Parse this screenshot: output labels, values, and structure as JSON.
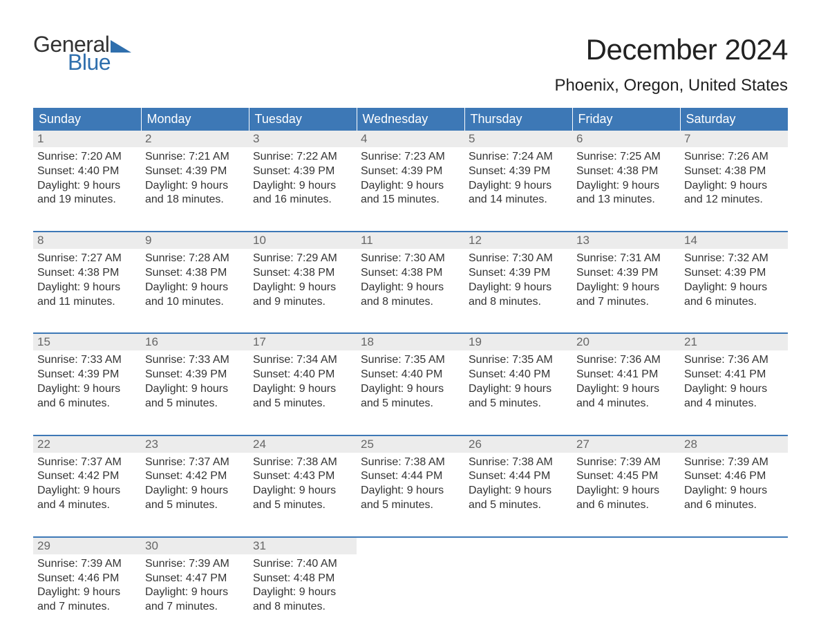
{
  "brand": {
    "text_a": "General",
    "text_b": "Blue",
    "color_a": "#333333",
    "color_b": "#2f6fad",
    "triangle_color": "#2f6fad"
  },
  "header": {
    "month_title": "December 2024",
    "location": "Phoenix, Oregon, United States"
  },
  "style": {
    "header_bg": "#3d78b6",
    "header_text": "#ffffff",
    "daynum_bg": "#ececec",
    "daynum_text": "#666666",
    "body_text": "#333333",
    "week_border": "#3d78b6",
    "title_fontsize": 42,
    "location_fontsize": 24,
    "dayheader_fontsize": 18,
    "daynum_fontsize": 17,
    "cell_fontsize": 16
  },
  "day_headers": [
    "Sunday",
    "Monday",
    "Tuesday",
    "Wednesday",
    "Thursday",
    "Friday",
    "Saturday"
  ],
  "weeks": [
    [
      {
        "n": "1",
        "lines": [
          "Sunrise: 7:20 AM",
          "Sunset: 4:40 PM",
          "Daylight: 9 hours",
          "and 19 minutes."
        ]
      },
      {
        "n": "2",
        "lines": [
          "Sunrise: 7:21 AM",
          "Sunset: 4:39 PM",
          "Daylight: 9 hours",
          "and 18 minutes."
        ]
      },
      {
        "n": "3",
        "lines": [
          "Sunrise: 7:22 AM",
          "Sunset: 4:39 PM",
          "Daylight: 9 hours",
          "and 16 minutes."
        ]
      },
      {
        "n": "4",
        "lines": [
          "Sunrise: 7:23 AM",
          "Sunset: 4:39 PM",
          "Daylight: 9 hours",
          "and 15 minutes."
        ]
      },
      {
        "n": "5",
        "lines": [
          "Sunrise: 7:24 AM",
          "Sunset: 4:39 PM",
          "Daylight: 9 hours",
          "and 14 minutes."
        ]
      },
      {
        "n": "6",
        "lines": [
          "Sunrise: 7:25 AM",
          "Sunset: 4:38 PM",
          "Daylight: 9 hours",
          "and 13 minutes."
        ]
      },
      {
        "n": "7",
        "lines": [
          "Sunrise: 7:26 AM",
          "Sunset: 4:38 PM",
          "Daylight: 9 hours",
          "and 12 minutes."
        ]
      }
    ],
    [
      {
        "n": "8",
        "lines": [
          "Sunrise: 7:27 AM",
          "Sunset: 4:38 PM",
          "Daylight: 9 hours",
          "and 11 minutes."
        ]
      },
      {
        "n": "9",
        "lines": [
          "Sunrise: 7:28 AM",
          "Sunset: 4:38 PM",
          "Daylight: 9 hours",
          "and 10 minutes."
        ]
      },
      {
        "n": "10",
        "lines": [
          "Sunrise: 7:29 AM",
          "Sunset: 4:38 PM",
          "Daylight: 9 hours",
          "and 9 minutes."
        ]
      },
      {
        "n": "11",
        "lines": [
          "Sunrise: 7:30 AM",
          "Sunset: 4:38 PM",
          "Daylight: 9 hours",
          "and 8 minutes."
        ]
      },
      {
        "n": "12",
        "lines": [
          "Sunrise: 7:30 AM",
          "Sunset: 4:39 PM",
          "Daylight: 9 hours",
          "and 8 minutes."
        ]
      },
      {
        "n": "13",
        "lines": [
          "Sunrise: 7:31 AM",
          "Sunset: 4:39 PM",
          "Daylight: 9 hours",
          "and 7 minutes."
        ]
      },
      {
        "n": "14",
        "lines": [
          "Sunrise: 7:32 AM",
          "Sunset: 4:39 PM",
          "Daylight: 9 hours",
          "and 6 minutes."
        ]
      }
    ],
    [
      {
        "n": "15",
        "lines": [
          "Sunrise: 7:33 AM",
          "Sunset: 4:39 PM",
          "Daylight: 9 hours",
          "and 6 minutes."
        ]
      },
      {
        "n": "16",
        "lines": [
          "Sunrise: 7:33 AM",
          "Sunset: 4:39 PM",
          "Daylight: 9 hours",
          "and 5 minutes."
        ]
      },
      {
        "n": "17",
        "lines": [
          "Sunrise: 7:34 AM",
          "Sunset: 4:40 PM",
          "Daylight: 9 hours",
          "and 5 minutes."
        ]
      },
      {
        "n": "18",
        "lines": [
          "Sunrise: 7:35 AM",
          "Sunset: 4:40 PM",
          "Daylight: 9 hours",
          "and 5 minutes."
        ]
      },
      {
        "n": "19",
        "lines": [
          "Sunrise: 7:35 AM",
          "Sunset: 4:40 PM",
          "Daylight: 9 hours",
          "and 5 minutes."
        ]
      },
      {
        "n": "20",
        "lines": [
          "Sunrise: 7:36 AM",
          "Sunset: 4:41 PM",
          "Daylight: 9 hours",
          "and 4 minutes."
        ]
      },
      {
        "n": "21",
        "lines": [
          "Sunrise: 7:36 AM",
          "Sunset: 4:41 PM",
          "Daylight: 9 hours",
          "and 4 minutes."
        ]
      }
    ],
    [
      {
        "n": "22",
        "lines": [
          "Sunrise: 7:37 AM",
          "Sunset: 4:42 PM",
          "Daylight: 9 hours",
          "and 4 minutes."
        ]
      },
      {
        "n": "23",
        "lines": [
          "Sunrise: 7:37 AM",
          "Sunset: 4:42 PM",
          "Daylight: 9 hours",
          "and 5 minutes."
        ]
      },
      {
        "n": "24",
        "lines": [
          "Sunrise: 7:38 AM",
          "Sunset: 4:43 PM",
          "Daylight: 9 hours",
          "and 5 minutes."
        ]
      },
      {
        "n": "25",
        "lines": [
          "Sunrise: 7:38 AM",
          "Sunset: 4:44 PM",
          "Daylight: 9 hours",
          "and 5 minutes."
        ]
      },
      {
        "n": "26",
        "lines": [
          "Sunrise: 7:38 AM",
          "Sunset: 4:44 PM",
          "Daylight: 9 hours",
          "and 5 minutes."
        ]
      },
      {
        "n": "27",
        "lines": [
          "Sunrise: 7:39 AM",
          "Sunset: 4:45 PM",
          "Daylight: 9 hours",
          "and 6 minutes."
        ]
      },
      {
        "n": "28",
        "lines": [
          "Sunrise: 7:39 AM",
          "Sunset: 4:46 PM",
          "Daylight: 9 hours",
          "and 6 minutes."
        ]
      }
    ],
    [
      {
        "n": "29",
        "lines": [
          "Sunrise: 7:39 AM",
          "Sunset: 4:46 PM",
          "Daylight: 9 hours",
          "and 7 minutes."
        ]
      },
      {
        "n": "30",
        "lines": [
          "Sunrise: 7:39 AM",
          "Sunset: 4:47 PM",
          "Daylight: 9 hours",
          "and 7 minutes."
        ]
      },
      {
        "n": "31",
        "lines": [
          "Sunrise: 7:40 AM",
          "Sunset: 4:48 PM",
          "Daylight: 9 hours",
          "and 8 minutes."
        ]
      },
      {
        "n": "",
        "lines": []
      },
      {
        "n": "",
        "lines": []
      },
      {
        "n": "",
        "lines": []
      },
      {
        "n": "",
        "lines": []
      }
    ]
  ]
}
